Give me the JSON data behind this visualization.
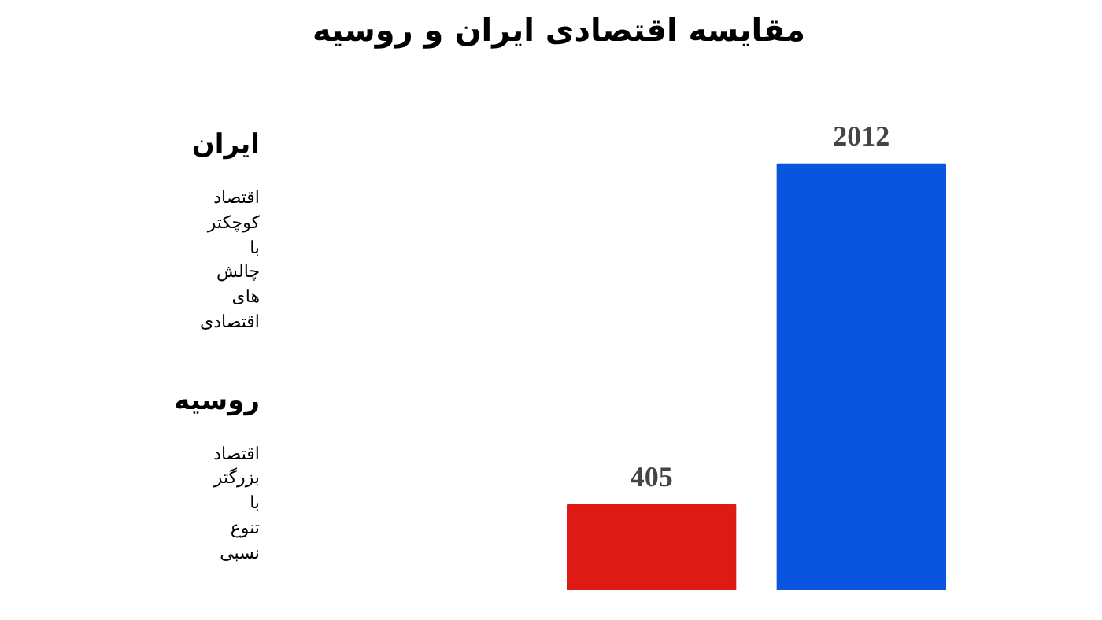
{
  "chart_data": {
    "type": "bar",
    "title": "مقایسه اقتصادی ایران و روسیه",
    "categories": [
      null,
      null
    ],
    "values": [
      405,
      2012
    ],
    "colors": [
      "#dd1a14",
      "#0a55e0"
    ],
    "data_labels": true,
    "annotations": [
      "ایران",
      "اقتصاد کوچکتر با چالش های اقتصادی",
      "روسیه",
      "اقتصاد بزرگتر با تنوع نسبی"
    ]
  }
}
